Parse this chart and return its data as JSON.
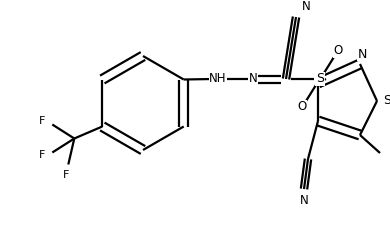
{
  "bg_color": "#ffffff",
  "line_color": "#000000",
  "lw": 1.6,
  "figsize": [
    3.9,
    2.31
  ],
  "dpi": 100,
  "xlim": [
    0,
    390
  ],
  "ylim": [
    0,
    231
  ]
}
